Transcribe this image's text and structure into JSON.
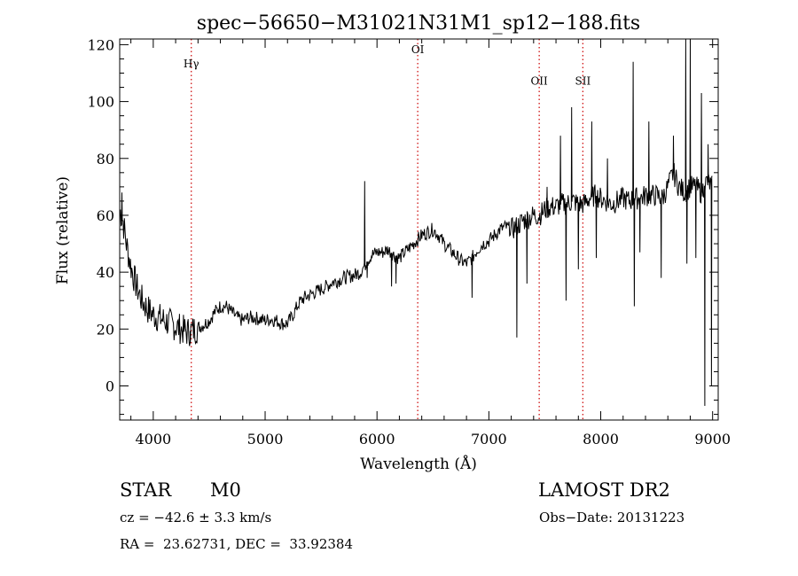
{
  "chart_data": {
    "type": "line",
    "title": "spec−56650−M31021N31M1_sp12−188.fits",
    "xlabel": "Wavelength (Å)",
    "ylabel": "Flux (relative)",
    "xlim": [
      3700,
      9050
    ],
    "ylim": [
      -12,
      122
    ],
    "xticks": [
      4000,
      5000,
      6000,
      7000,
      8000,
      9000
    ],
    "yticks": [
      0,
      20,
      40,
      60,
      80,
      100,
      120
    ],
    "grid": false,
    "lines": [
      {
        "name": "Hγ",
        "x": 4340,
        "label": "Hγ",
        "label_y": 112
      },
      {
        "name": "OI",
        "x": 6364,
        "label": "OI",
        "label_y": 117
      },
      {
        "name": "OII",
        "x": 7450,
        "label": "OII",
        "label_y": 106
      },
      {
        "name": "SII",
        "x": 7840,
        "label": "SII",
        "label_y": 106
      }
    ],
    "line_color": "#cc0000",
    "series": [
      {
        "name": "flux",
        "color": "#000000",
        "continuum": [
          [
            3700,
            62
          ],
          [
            3730,
            58
          ],
          [
            3760,
            50
          ],
          [
            3800,
            42
          ],
          [
            3850,
            35
          ],
          [
            3900,
            30
          ],
          [
            3950,
            27
          ],
          [
            4000,
            25
          ],
          [
            4050,
            24
          ],
          [
            4100,
            23
          ],
          [
            4150,
            22
          ],
          [
            4200,
            21
          ],
          [
            4250,
            20
          ],
          [
            4300,
            19
          ],
          [
            4350,
            19.5
          ],
          [
            4400,
            20.5
          ],
          [
            4450,
            21.5
          ],
          [
            4500,
            23
          ],
          [
            4550,
            26
          ],
          [
            4600,
            28
          ],
          [
            4650,
            28
          ],
          [
            4700,
            26
          ],
          [
            4750,
            24
          ],
          [
            4800,
            23
          ],
          [
            4850,
            24
          ],
          [
            4900,
            24
          ],
          [
            4950,
            23.5
          ],
          [
            5000,
            23
          ],
          [
            5050,
            23.5
          ],
          [
            5100,
            23
          ],
          [
            5150,
            22
          ],
          [
            5200,
            22
          ],
          [
            5250,
            25
          ],
          [
            5300,
            29
          ],
          [
            5350,
            31
          ],
          [
            5400,
            32
          ],
          [
            5450,
            33
          ],
          [
            5500,
            34
          ],
          [
            5550,
            35
          ],
          [
            5600,
            36.5
          ],
          [
            5650,
            37
          ],
          [
            5700,
            38
          ],
          [
            5750,
            38.5
          ],
          [
            5800,
            39
          ],
          [
            5850,
            40
          ],
          [
            5900,
            43
          ],
          [
            5950,
            46
          ],
          [
            6000,
            47
          ],
          [
            6050,
            47
          ],
          [
            6100,
            48
          ],
          [
            6150,
            46
          ],
          [
            6200,
            45
          ],
          [
            6250,
            47
          ],
          [
            6300,
            49
          ],
          [
            6350,
            51
          ],
          [
            6400,
            53
          ],
          [
            6450,
            54
          ],
          [
            6500,
            55
          ],
          [
            6550,
            53
          ],
          [
            6600,
            50
          ],
          [
            6650,
            48
          ],
          [
            6700,
            46
          ],
          [
            6750,
            44
          ],
          [
            6800,
            43
          ],
          [
            6850,
            45
          ],
          [
            6900,
            48
          ],
          [
            6950,
            50
          ],
          [
            7000,
            51
          ],
          [
            7050,
            53
          ],
          [
            7100,
            55
          ],
          [
            7150,
            56
          ],
          [
            7200,
            55
          ],
          [
            7250,
            56
          ],
          [
            7300,
            58
          ],
          [
            7350,
            59
          ],
          [
            7400,
            60
          ],
          [
            7450,
            60
          ],
          [
            7500,
            62
          ],
          [
            7550,
            63
          ],
          [
            7600,
            63
          ],
          [
            7650,
            64
          ],
          [
            7700,
            64
          ],
          [
            7750,
            65
          ],
          [
            7800,
            64
          ],
          [
            7850,
            64
          ],
          [
            7900,
            66
          ],
          [
            7950,
            67
          ],
          [
            8000,
            66
          ],
          [
            8050,
            65
          ],
          [
            8100,
            64
          ],
          [
            8150,
            65
          ],
          [
            8200,
            66
          ],
          [
            8250,
            65
          ],
          [
            8300,
            66
          ],
          [
            8350,
            66
          ],
          [
            8400,
            67
          ],
          [
            8450,
            67
          ],
          [
            8500,
            67
          ],
          [
            8550,
            66
          ],
          [
            8600,
            70
          ],
          [
            8650,
            75
          ],
          [
            8700,
            70
          ],
          [
            8750,
            68
          ],
          [
            8800,
            70
          ],
          [
            8850,
            70
          ],
          [
            8900,
            68
          ],
          [
            8950,
            72
          ],
          [
            9000,
            70
          ]
        ],
        "features": [
          [
            3720,
            68
          ],
          [
            4332,
            15
          ],
          [
            5890,
            72
          ],
          [
            5912,
            38
          ],
          [
            6130,
            35
          ],
          [
            6170,
            36
          ],
          [
            6850,
            31
          ],
          [
            7250,
            17
          ],
          [
            7340,
            36
          ],
          [
            7520,
            70
          ],
          [
            7640,
            88
          ],
          [
            7690,
            30
          ],
          [
            7740,
            98
          ],
          [
            7800,
            41
          ],
          [
            7920,
            93
          ],
          [
            7960,
            45
          ],
          [
            8060,
            80
          ],
          [
            8290,
            114
          ],
          [
            8300,
            28
          ],
          [
            8350,
            47
          ],
          [
            8430,
            93
          ],
          [
            8540,
            38
          ],
          [
            8650,
            88
          ],
          [
            8760,
            122
          ],
          [
            8770,
            43
          ],
          [
            8800,
            122
          ],
          [
            8850,
            45
          ],
          [
            8900,
            103
          ],
          [
            8930,
            -7
          ],
          [
            8960,
            85
          ],
          [
            8990,
            0
          ]
        ],
        "noise": 2.5
      }
    ]
  },
  "info": {
    "object_class": "STAR",
    "subclass": "M0",
    "survey": "LAMOST DR2",
    "redshift": "cz = −42.6 ± 3.3 km/s",
    "obs_date": "Obs−Date: 20131223",
    "coords": "RA =  23.62731, DEC =  33.92384"
  }
}
